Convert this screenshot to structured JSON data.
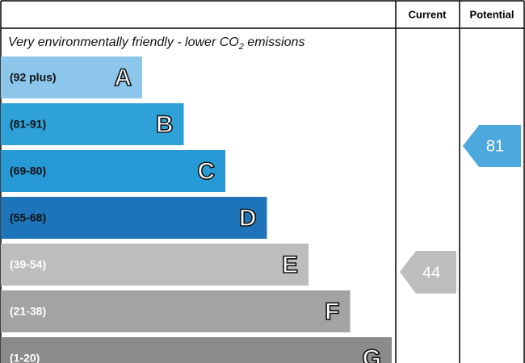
{
  "header": {
    "current": "Current",
    "potential": "Potential"
  },
  "top_label": {
    "text": "Very environmentally friendly - lower CO",
    "subscript": "2",
    "tail": " emissions"
  },
  "bands": [
    {
      "range": "(92 plus)",
      "letter": "A",
      "color": "#8cc6eb"
    },
    {
      "range": "(81-91)",
      "letter": "B",
      "color": "#2ea1d9"
    },
    {
      "range": "(69-80)",
      "letter": "C",
      "color": "#279ad6"
    },
    {
      "range": "(55-68)",
      "letter": "D",
      "color": "#1d74b9"
    },
    {
      "range": "(39-54)",
      "letter": "E",
      "color": "#bdbdbd"
    },
    {
      "range": "(21-38)",
      "letter": "F",
      "color": "#a3a3a3"
    },
    {
      "range": "(1-20)",
      "letter": "G",
      "color": "#8b8b8b"
    }
  ],
  "current": {
    "value": "44",
    "color": "#bdbdbd"
  },
  "potential": {
    "value": "81",
    "color": "#4da8dd"
  }
}
